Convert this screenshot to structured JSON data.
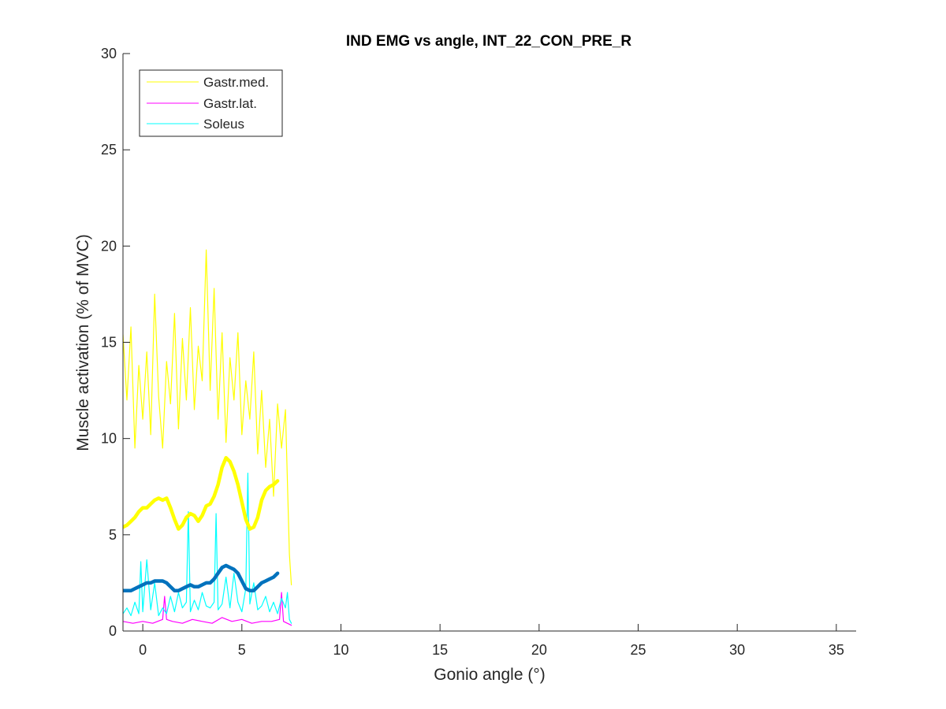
{
  "chart_data": {
    "type": "line",
    "title": "IND EMG vs angle, INT_22_CON_PRE_R",
    "xlabel": "Gonio angle (°)",
    "ylabel": "Muscle activation (% of MVC)",
    "xlim": [
      -1,
      36
    ],
    "ylim": [
      0,
      30
    ],
    "xticks": [
      0,
      5,
      10,
      15,
      20,
      25,
      30,
      35
    ],
    "yticks": [
      0,
      5,
      10,
      15,
      20,
      25,
      30
    ],
    "grid": false,
    "legend_position": "top-left",
    "legend": [
      {
        "label": "Gastr.med.",
        "color": "#ffff00"
      },
      {
        "label": "Gastr.lat.",
        "color": "#ff00ff"
      },
      {
        "label": "Soleus",
        "color": "#00ffff"
      }
    ],
    "series": [
      {
        "name": "Gastr.med.",
        "color": "#ffff00",
        "x": [
          -1.0,
          -0.8,
          -0.6,
          -0.4,
          -0.2,
          0.0,
          0.2,
          0.4,
          0.6,
          0.8,
          1.0,
          1.2,
          1.4,
          1.6,
          1.8,
          2.0,
          2.2,
          2.4,
          2.6,
          2.8,
          3.0,
          3.2,
          3.4,
          3.6,
          3.8,
          4.0,
          4.2,
          4.4,
          4.6,
          4.8,
          5.0,
          5.2,
          5.4,
          5.6,
          5.8,
          6.0,
          6.2,
          6.4,
          6.6,
          6.8,
          7.0,
          7.2,
          7.4,
          7.5
        ],
        "values": [
          15.4,
          12.0,
          15.8,
          9.5,
          13.8,
          11.0,
          14.5,
          10.2,
          17.5,
          12.2,
          9.5,
          14.0,
          11.8,
          16.5,
          10.5,
          15.2,
          12.0,
          16.8,
          11.5,
          14.8,
          13.0,
          19.8,
          12.5,
          17.8,
          11.0,
          15.5,
          9.8,
          14.2,
          12.0,
          15.5,
          10.2,
          13.0,
          11.0,
          14.5,
          9.2,
          12.5,
          8.5,
          11.0,
          7.0,
          11.8,
          9.5,
          11.5,
          4.0,
          2.4
        ]
      },
      {
        "name": "Gastr.lat.",
        "color": "#ff00ff",
        "x": [
          -1.0,
          -0.5,
          0.0,
          0.5,
          1.0,
          1.1,
          1.2,
          1.5,
          2.0,
          2.5,
          3.0,
          3.5,
          4.0,
          4.5,
          5.0,
          5.5,
          6.0,
          6.5,
          6.9,
          7.0,
          7.1,
          7.5
        ],
        "values": [
          0.5,
          0.4,
          0.5,
          0.4,
          0.6,
          1.8,
          0.6,
          0.5,
          0.4,
          0.6,
          0.5,
          0.4,
          0.7,
          0.5,
          0.6,
          0.4,
          0.5,
          0.5,
          0.6,
          2.0,
          0.5,
          0.3
        ]
      },
      {
        "name": "Soleus",
        "color": "#00ffff",
        "x": [
          -1.0,
          -0.8,
          -0.6,
          -0.4,
          -0.2,
          -0.1,
          0.0,
          0.2,
          0.4,
          0.6,
          0.8,
          1.0,
          1.2,
          1.4,
          1.6,
          1.8,
          2.0,
          2.2,
          2.3,
          2.4,
          2.6,
          2.8,
          3.0,
          3.2,
          3.4,
          3.6,
          3.7,
          3.8,
          4.0,
          4.2,
          4.4,
          4.6,
          4.8,
          5.0,
          5.2,
          5.3,
          5.4,
          5.6,
          5.8,
          6.0,
          6.2,
          6.4,
          6.6,
          6.8,
          7.0,
          7.2,
          7.3,
          7.4,
          7.5
        ],
        "values": [
          0.9,
          1.2,
          0.8,
          1.5,
          0.9,
          3.6,
          1.0,
          3.7,
          1.1,
          2.5,
          0.8,
          1.2,
          0.9,
          1.8,
          1.0,
          2.0,
          1.2,
          1.5,
          6.2,
          1.0,
          1.6,
          1.1,
          2.0,
          1.3,
          1.2,
          1.5,
          6.1,
          1.1,
          1.4,
          2.8,
          1.2,
          3.0,
          1.5,
          1.0,
          2.2,
          8.2,
          1.4,
          2.5,
          1.1,
          1.3,
          1.8,
          1.0,
          1.5,
          0.9,
          1.7,
          1.2,
          2.0,
          0.6,
          0.4
        ]
      },
      {
        "name": "",
        "color": "#ffff00",
        "x": [
          -1.0,
          -0.8,
          -0.6,
          -0.4,
          -0.2,
          0.0,
          0.2,
          0.4,
          0.6,
          0.8,
          1.0,
          1.2,
          1.4,
          1.6,
          1.8,
          2.0,
          2.2,
          2.4,
          2.6,
          2.8,
          3.0,
          3.2,
          3.4,
          3.6,
          3.8,
          4.0,
          4.2,
          4.4,
          4.6,
          4.8,
          5.0,
          5.2,
          5.4,
          5.6,
          5.8,
          6.0,
          6.2,
          6.4,
          6.6,
          6.8
        ],
        "values": [
          5.4,
          5.5,
          5.7,
          5.9,
          6.2,
          6.4,
          6.4,
          6.6,
          6.8,
          6.9,
          6.8,
          6.9,
          6.4,
          5.8,
          5.3,
          5.5,
          5.9,
          6.1,
          6.0,
          5.7,
          6.0,
          6.5,
          6.6,
          7.0,
          7.6,
          8.5,
          9.0,
          8.8,
          8.3,
          7.6,
          6.7,
          5.8,
          5.3,
          5.4,
          5.9,
          6.8,
          7.3,
          7.5,
          7.6,
          7.8
        ]
      },
      {
        "name": "",
        "color": "#0072bd",
        "x": [
          -1.0,
          -0.8,
          -0.6,
          -0.4,
          -0.2,
          0.0,
          0.2,
          0.4,
          0.6,
          0.8,
          1.0,
          1.2,
          1.4,
          1.6,
          1.8,
          2.0,
          2.2,
          2.4,
          2.6,
          2.8,
          3.0,
          3.2,
          3.4,
          3.6,
          3.8,
          4.0,
          4.2,
          4.4,
          4.6,
          4.8,
          5.0,
          5.2,
          5.4,
          5.6,
          5.8,
          6.0,
          6.2,
          6.4,
          6.6,
          6.8
        ],
        "values": [
          2.1,
          2.1,
          2.1,
          2.2,
          2.3,
          2.4,
          2.5,
          2.5,
          2.6,
          2.6,
          2.6,
          2.5,
          2.3,
          2.1,
          2.1,
          2.2,
          2.3,
          2.4,
          2.3,
          2.3,
          2.4,
          2.5,
          2.5,
          2.7,
          3.0,
          3.3,
          3.4,
          3.3,
          3.2,
          3.0,
          2.6,
          2.2,
          2.1,
          2.1,
          2.3,
          2.5,
          2.6,
          2.7,
          2.8,
          3.0
        ]
      }
    ]
  }
}
